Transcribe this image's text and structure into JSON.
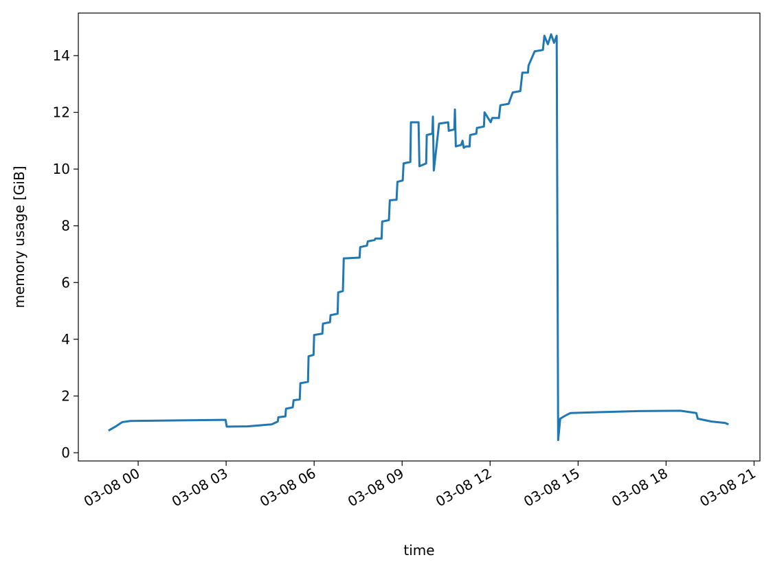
{
  "chart_data": {
    "type": "line",
    "x_label": "time",
    "y_label": "memory usage [GiB]",
    "x": [
      -1.01,
      -0.73,
      -0.54,
      -0.26,
      2.98,
      3.02,
      3.73,
      4.2,
      4.55,
      4.76,
      4.78,
      5.02,
      5.04,
      5.27,
      5.3,
      5.51,
      5.53,
      5.79,
      5.81,
      5.98,
      6.0,
      6.28,
      6.3,
      6.54,
      6.56,
      6.8,
      6.82,
      6.98,
      7.01,
      7.55,
      7.57,
      7.8,
      7.83,
      8.06,
      8.09,
      8.3,
      8.32,
      8.55,
      8.58,
      8.81,
      8.84,
      9.02,
      9.05,
      9.28,
      9.3,
      9.56,
      9.59,
      9.82,
      9.84,
      10.03,
      10.05,
      10.08,
      10.26,
      10.57,
      10.59,
      10.78,
      10.8,
      10.83,
      11.01,
      11.06,
      11.1,
      11.18,
      11.3,
      11.32,
      11.53,
      11.55,
      11.79,
      11.81,
      12.02,
      12.07,
      12.3,
      12.35,
      12.63,
      12.77,
      13.03,
      13.1,
      13.29,
      13.31,
      13.52,
      13.8,
      13.85,
      13.97,
      14.08,
      14.18,
      14.27,
      14.32,
      14.39,
      14.55,
      14.74,
      15.68,
      17.08,
      18.49,
      19.03,
      19.08,
      19.55,
      20.01,
      20.13
    ],
    "series": [
      {
        "name": "memory usage",
        "color": "#1f77b4",
        "values": [
          0.78,
          0.95,
          1.08,
          1.12,
          1.16,
          0.92,
          0.93,
          0.97,
          1.0,
          1.1,
          1.25,
          1.28,
          1.55,
          1.6,
          1.85,
          1.88,
          2.45,
          2.5,
          3.4,
          3.45,
          4.15,
          4.2,
          4.55,
          4.6,
          4.85,
          4.9,
          5.65,
          5.7,
          6.85,
          6.88,
          7.25,
          7.3,
          7.45,
          7.5,
          7.55,
          7.55,
          8.15,
          8.2,
          8.9,
          8.92,
          9.55,
          9.6,
          10.2,
          10.25,
          11.65,
          11.65,
          10.1,
          10.2,
          11.2,
          11.25,
          11.85,
          9.95,
          11.6,
          11.65,
          11.35,
          11.4,
          12.1,
          10.8,
          10.85,
          11.0,
          10.75,
          10.8,
          10.8,
          11.2,
          11.25,
          11.45,
          11.5,
          12.0,
          11.65,
          11.8,
          11.8,
          12.25,
          12.3,
          12.7,
          12.75,
          13.4,
          13.4,
          13.65,
          14.15,
          14.2,
          14.7,
          14.4,
          14.75,
          14.45,
          14.7,
          0.45,
          1.2,
          1.3,
          1.4,
          1.43,
          1.47,
          1.48,
          1.4,
          1.2,
          1.1,
          1.05,
          1.0
        ]
      }
    ],
    "xlim": [
      -2.04,
      21.2
    ],
    "ylim": [
      -0.29,
      15.5
    ],
    "xticks": [
      {
        "value": 0,
        "label": "03-08 00"
      },
      {
        "value": 3,
        "label": "03-08 03"
      },
      {
        "value": 6,
        "label": "03-08 06"
      },
      {
        "value": 9,
        "label": "03-08 09"
      },
      {
        "value": 12,
        "label": "03-08 12"
      },
      {
        "value": 15,
        "label": "03-08 15"
      },
      {
        "value": 18,
        "label": "03-08 18"
      },
      {
        "value": 21,
        "label": "03-08 21"
      }
    ],
    "yticks": [
      0,
      2,
      4,
      6,
      8,
      10,
      12,
      14
    ]
  }
}
